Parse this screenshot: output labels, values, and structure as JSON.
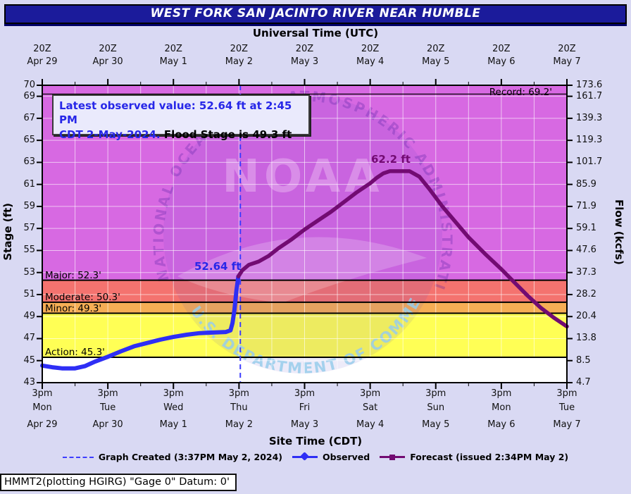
{
  "title": "WEST FORK SAN JACINTO RIVER NEAR HUMBLE",
  "axes": {
    "top_label": "Universal Time (UTC)",
    "bottom_label": "Site Time (CDT)",
    "stage_label": "Stage (ft)",
    "flow_label": "Flow (kcfs)",
    "top_tick_text": "20Z",
    "bottom_tick_text": "3pm",
    "dates": [
      "Apr 29",
      "Apr 30",
      "May 1",
      "May 2",
      "May 3",
      "May 4",
      "May 5",
      "May 6",
      "May 7"
    ],
    "days": [
      "Mon",
      "Tue",
      "Wed",
      "Thu",
      "Fri",
      "Sat",
      "Sun",
      "Mon",
      "Tue"
    ],
    "stage_flow_ticks": [
      {
        "stage": 70,
        "flow": "173.6"
      },
      {
        "stage": 69,
        "flow": "161.7"
      },
      {
        "stage": 67,
        "flow": "139.3"
      },
      {
        "stage": 65,
        "flow": "119.3"
      },
      {
        "stage": 63,
        "flow": "101.7"
      },
      {
        "stage": 61,
        "flow": "85.9"
      },
      {
        "stage": 59,
        "flow": "71.9"
      },
      {
        "stage": 57,
        "flow": "59.1"
      },
      {
        "stage": 55,
        "flow": "47.6"
      },
      {
        "stage": 53,
        "flow": "37.3"
      },
      {
        "stage": 51,
        "flow": "28.2"
      },
      {
        "stage": 49,
        "flow": "20.4"
      },
      {
        "stage": 47,
        "flow": "13.8"
      },
      {
        "stage": 45,
        "flow": "8.5"
      },
      {
        "stage": 43,
        "flow": "4.7"
      }
    ]
  },
  "info_box": {
    "line1": "Latest observed value: 52.64 ft at 2:45 PM",
    "line2_blue": "CDT 2-May-2024.",
    "line2_black": " Flood Stage is 49.3 ft"
  },
  "annotations": {
    "junction_label": "52.64 ft",
    "peak_label": "62.2 ft"
  },
  "legend": {
    "created": "Graph Created (3:37PM May 2, 2024)",
    "observed": "Observed",
    "forecast": "Forecast (issued 2:34PM May 2)"
  },
  "footer": "HMMT2(plotting HGIRG) \"Gage 0\" Datum: 0'",
  "watermark": {
    "noaa": "NOAA",
    "ring_text": "NATIONAL OCEANIC AND ATMOSPHERIC ADMINISTRATION",
    "bottom_text": "U.S. DEPARTMENT OF COMMERCE"
  },
  "colors": {
    "page_bg": "#d9d9f3",
    "title_bg": "#1b1b9b",
    "observed": "#2e2ef5",
    "forecast": "#720b72",
    "created_line": "#3d3dff",
    "grid": "rgba(255,255,255,0.6)"
  },
  "chart_data": {
    "type": "line",
    "title": "WEST FORK SAN JACINTO RIVER NEAR HUMBLE",
    "x_axis": {
      "start": "Apr 29 3pm CDT (20Z UTC)",
      "end": "May 7 3pm CDT",
      "units": "days since Apr 29 3pm CDT",
      "range": [
        0,
        8
      ],
      "tick_interval_days": 1,
      "grid_interval_days": 0.5
    },
    "y_left": {
      "label": "Stage (ft)",
      "range": [
        43,
        70
      ]
    },
    "y_right": {
      "label": "Flow (kcfs)",
      "range_labels": [
        "4.7",
        "173.6"
      ]
    },
    "zones": [
      {
        "name": "major-flood",
        "from": 52.3,
        "to": 70,
        "color": "#d769e2"
      },
      {
        "name": "moderate-flood",
        "from": 50.3,
        "to": 52.3,
        "color": "#f4736f"
      },
      {
        "name": "minor-flood",
        "from": 49.3,
        "to": 50.3,
        "color": "#f6ae55"
      },
      {
        "name": "action",
        "from": 45.3,
        "to": 49.3,
        "color": "#ffff55"
      },
      {
        "name": "normal",
        "from": 43,
        "to": 45.3,
        "color": "#ffffff"
      }
    ],
    "thresholds": [
      {
        "name": "record",
        "label": "Record: 69.2'",
        "value": 69.2,
        "align": "right"
      },
      {
        "name": "major",
        "label": "Major: 52.3'",
        "value": 52.3,
        "align": "left"
      },
      {
        "name": "moderate",
        "label": "Moderate: 50.3'",
        "value": 50.3,
        "align": "left"
      },
      {
        "name": "minor",
        "label": "Minor: 49.3'",
        "value": 49.3,
        "align": "left"
      },
      {
        "name": "action",
        "label": "Action: 45.3'",
        "value": 45.3,
        "align": "left"
      }
    ],
    "graph_created_line_t": 3.02,
    "series": [
      {
        "name": "Observed",
        "color": "#2e2ef5",
        "points": [
          [
            0,
            44.55
          ],
          [
            0.15,
            44.4
          ],
          [
            0.3,
            44.3
          ],
          [
            0.5,
            44.3
          ],
          [
            0.65,
            44.5
          ],
          [
            0.8,
            44.9
          ],
          [
            1.0,
            45.35
          ],
          [
            1.2,
            45.85
          ],
          [
            1.4,
            46.3
          ],
          [
            1.6,
            46.6
          ],
          [
            1.8,
            46.9
          ],
          [
            2.0,
            47.15
          ],
          [
            2.2,
            47.35
          ],
          [
            2.4,
            47.5
          ],
          [
            2.6,
            47.55
          ],
          [
            2.8,
            47.6
          ],
          [
            2.87,
            47.75
          ],
          [
            2.9,
            48.4
          ],
          [
            2.93,
            49.6
          ],
          [
            2.96,
            51.3
          ],
          [
            2.98,
            52.2
          ],
          [
            2.99,
            52.64
          ]
        ]
      },
      {
        "name": "Forecast",
        "color": "#720b72",
        "points": [
          [
            2.99,
            52.64
          ],
          [
            3.05,
            53.2
          ],
          [
            3.15,
            53.7
          ],
          [
            3.3,
            54.0
          ],
          [
            3.45,
            54.5
          ],
          [
            3.6,
            55.2
          ],
          [
            3.8,
            56.0
          ],
          [
            4.0,
            56.9
          ],
          [
            4.2,
            57.7
          ],
          [
            4.4,
            58.5
          ],
          [
            4.6,
            59.4
          ],
          [
            4.8,
            60.3
          ],
          [
            5.0,
            61.1
          ],
          [
            5.1,
            61.6
          ],
          [
            5.2,
            62.0
          ],
          [
            5.3,
            62.2
          ],
          [
            5.6,
            62.2
          ],
          [
            5.75,
            61.7
          ],
          [
            5.9,
            60.6
          ],
          [
            6.1,
            59.0
          ],
          [
            6.3,
            57.6
          ],
          [
            6.5,
            56.2
          ],
          [
            6.75,
            54.7
          ],
          [
            7.0,
            53.3
          ],
          [
            7.2,
            52.1
          ],
          [
            7.4,
            50.9
          ],
          [
            7.6,
            49.8
          ],
          [
            7.8,
            48.9
          ],
          [
            8.0,
            48.1
          ]
        ]
      }
    ],
    "key_values": {
      "latest_observed_ft": 52.64,
      "latest_observed_time": "2:45 PM CDT 2-May-2024",
      "flood_stage_ft": 49.3,
      "forecast_peak_ft": 62.2,
      "record_ft": 69.2
    }
  }
}
